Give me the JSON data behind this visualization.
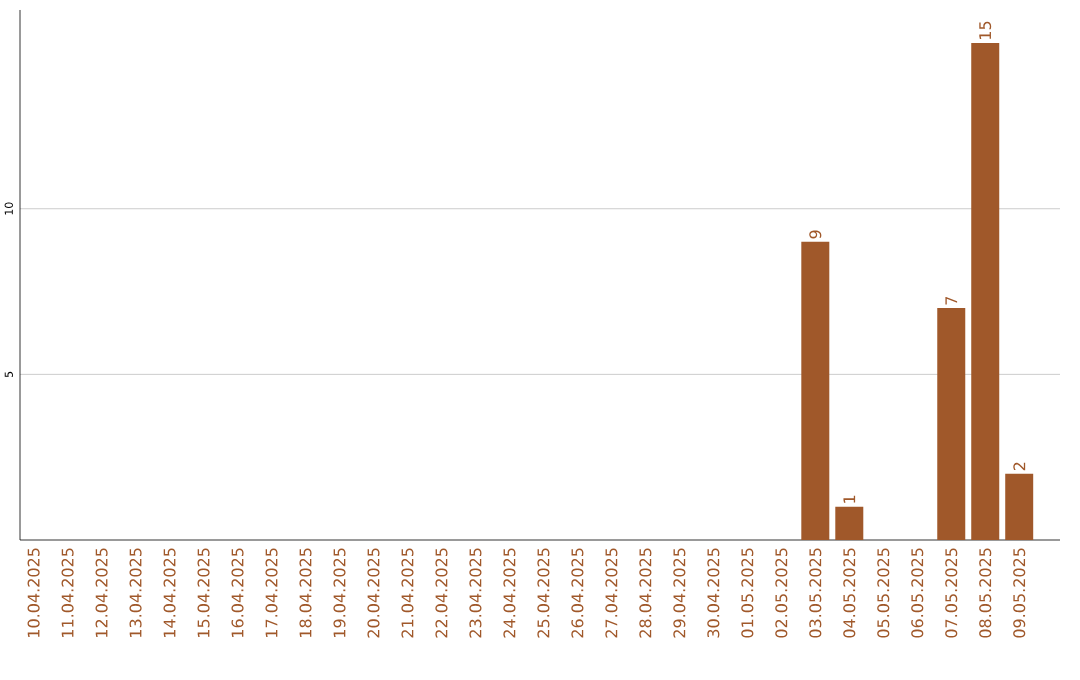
{
  "chart_data": {
    "type": "bar",
    "categories": [
      "10.04.2025",
      "11.04.2025",
      "12.04.2025",
      "13.04.2025",
      "14.04.2025",
      "15.04.2025",
      "16.04.2025",
      "17.04.2025",
      "18.04.2025",
      "19.04.2025",
      "20.04.2025",
      "21.04.2025",
      "22.04.2025",
      "23.04.2025",
      "24.04.2025",
      "25.04.2025",
      "26.04.2025",
      "27.04.2025",
      "28.04.2025",
      "29.04.2025",
      "30.04.2025",
      "01.05.2025",
      "02.05.2025",
      "03.05.2025",
      "04.05.2025",
      "05.05.2025",
      "06.05.2025",
      "07.05.2025",
      "08.05.2025",
      "09.05.2025"
    ],
    "values": [
      0,
      0,
      0,
      0,
      0,
      0,
      0,
      0,
      0,
      0,
      0,
      0,
      0,
      0,
      0,
      0,
      0,
      0,
      0,
      0,
      0,
      0,
      0,
      9,
      1,
      0,
      0,
      7,
      15,
      2
    ],
    "value_labels": [
      null,
      null,
      null,
      null,
      null,
      null,
      null,
      null,
      null,
      null,
      null,
      null,
      null,
      null,
      null,
      null,
      null,
      null,
      null,
      null,
      null,
      null,
      null,
      "9",
      "1",
      null,
      null,
      "7",
      "15",
      "2"
    ],
    "color": "#a0582a",
    "ylim": [
      0,
      16
    ],
    "yticks": [
      5,
      10
    ],
    "grid": "y"
  }
}
